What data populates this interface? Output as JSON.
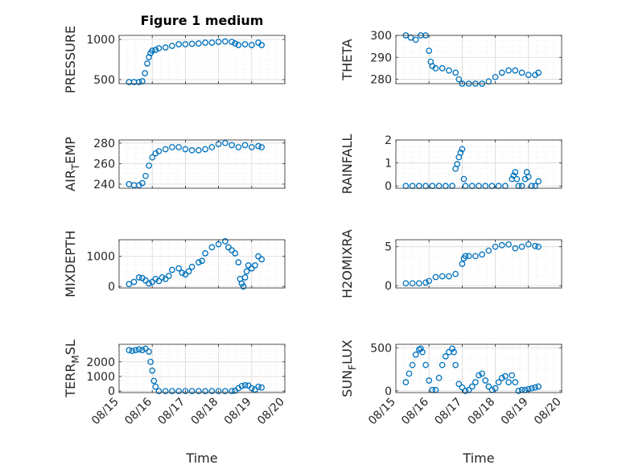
{
  "figure": {
    "title": "Figure 1 medium",
    "xlabel": "Time",
    "colors": {
      "marker": "#0072BD",
      "grid": "#d9d9d9",
      "axis": "#262626"
    },
    "x_tick_labels": [
      "08/15",
      "08/16",
      "08/17",
      "08/18",
      "08/19",
      "08/20"
    ]
  },
  "chart_data": [
    {
      "type": "scatter",
      "ylabel": "PRESSURE",
      "ylabel_base": "PRESSURE",
      "ylabel_sub": "",
      "ylabel_tail": "",
      "ylim": [
        450,
        1050
      ],
      "yticks": [
        500,
        1000
      ],
      "ytick_labels": [
        "500",
        "1000"
      ],
      "x": [
        15.3,
        15.45,
        15.6,
        15.7,
        15.78,
        15.85,
        15.9,
        15.95,
        16.0,
        16.1,
        16.2,
        16.4,
        16.6,
        16.8,
        17.0,
        17.2,
        17.4,
        17.6,
        17.8,
        18.0,
        18.2,
        18.4,
        18.5,
        18.6,
        18.8,
        19.0,
        19.2,
        19.3
      ],
      "y": [
        470,
        470,
        470,
        480,
        580,
        700,
        780,
        830,
        860,
        870,
        890,
        900,
        920,
        940,
        940,
        945,
        950,
        960,
        960,
        970,
        975,
        970,
        950,
        930,
        940,
        930,
        960,
        930
      ]
    },
    {
      "type": "scatter",
      "ylabel": "THETA",
      "ylabel_base": "THETA",
      "ylabel_sub": "",
      "ylabel_tail": "",
      "ylim": [
        278,
        300
      ],
      "yticks": [
        280,
        290,
        300
      ],
      "ytick_labels": [
        "280",
        "290",
        "300"
      ],
      "x": [
        15.3,
        15.45,
        15.6,
        15.75,
        15.9,
        16.0,
        16.05,
        16.1,
        16.2,
        16.4,
        16.6,
        16.8,
        16.9,
        17.0,
        17.2,
        17.4,
        17.6,
        17.8,
        18.0,
        18.2,
        18.4,
        18.6,
        18.8,
        19.0,
        19.2,
        19.3
      ],
      "y": [
        300,
        299,
        298,
        300,
        300,
        293,
        288,
        286,
        285,
        285,
        284,
        283,
        280,
        278,
        278,
        278,
        278,
        279,
        281,
        283,
        284,
        284,
        283,
        282,
        282,
        283
      ]
    },
    {
      "type": "scatter",
      "ylabel": "AIR_TEMP",
      "ylabel_base": "AIR",
      "ylabel_sub": "T",
      "ylabel_tail": "EMP",
      "ylim": [
        236,
        283
      ],
      "yticks": [
        240,
        260,
        280
      ],
      "ytick_labels": [
        "240",
        "260",
        "280"
      ],
      "x": [
        15.3,
        15.45,
        15.6,
        15.7,
        15.8,
        15.9,
        16.0,
        16.1,
        16.2,
        16.4,
        16.6,
        16.8,
        17.0,
        17.2,
        17.4,
        17.6,
        17.8,
        18.0,
        18.2,
        18.4,
        18.6,
        18.8,
        19.0,
        19.2,
        19.3
      ],
      "y": [
        240,
        239,
        239,
        241,
        248,
        258,
        266,
        270,
        272,
        274,
        276,
        276,
        274,
        273,
        273,
        274,
        276,
        279,
        280,
        278,
        276,
        278,
        276,
        277,
        276
      ]
    },
    {
      "type": "scatter",
      "ylabel": "RAINFALL",
      "ylabel_base": "RAINFALL",
      "ylabel_sub": "",
      "ylabel_tail": "",
      "ylim": [
        -0.1,
        2
      ],
      "yticks": [
        0,
        1,
        2
      ],
      "ytick_labels": [
        "0",
        "1",
        "2"
      ],
      "x": [
        15.3,
        15.5,
        15.7,
        15.9,
        16.1,
        16.3,
        16.5,
        16.7,
        16.8,
        16.85,
        16.9,
        16.95,
        17.0,
        17.05,
        17.1,
        17.3,
        17.5,
        17.7,
        17.9,
        18.1,
        18.3,
        18.5,
        18.55,
        18.6,
        18.65,
        18.7,
        18.8,
        18.9,
        18.95,
        19.0,
        19.1,
        19.2,
        19.3
      ],
      "y": [
        0,
        0,
        0,
        0,
        0,
        0,
        0,
        0,
        0.75,
        0.95,
        1.25,
        1.45,
        1.6,
        0.3,
        0,
        0,
        0,
        0,
        0,
        0,
        0,
        0.3,
        0.45,
        0.6,
        0.3,
        0,
        0,
        0.3,
        0.6,
        0.4,
        0,
        0,
        0.2
      ]
    },
    {
      "type": "scatter",
      "ylabel": "MIXDEPTH",
      "ylabel_base": "MIXDEPTH",
      "ylabel_sub": "",
      "ylabel_tail": "",
      "ylim": [
        -50,
        1550
      ],
      "yticks": [
        0,
        1000
      ],
      "ytick_labels": [
        "0",
        "1000"
      ],
      "x": [
        15.3,
        15.45,
        15.6,
        15.7,
        15.8,
        15.9,
        16.0,
        16.1,
        16.2,
        16.3,
        16.4,
        16.5,
        16.6,
        16.8,
        16.9,
        17.0,
        17.1,
        17.2,
        17.4,
        17.5,
        17.6,
        17.8,
        18.0,
        18.2,
        18.3,
        18.4,
        18.5,
        18.6,
        18.65,
        18.7,
        18.75,
        18.8,
        18.85,
        18.9,
        19.0,
        19.1,
        19.2,
        19.3
      ],
      "y": [
        80,
        150,
        300,
        280,
        200,
        100,
        150,
        250,
        180,
        300,
        250,
        350,
        550,
        600,
        450,
        400,
        500,
        650,
        800,
        850,
        1100,
        1300,
        1400,
        1500,
        1300,
        1200,
        1100,
        800,
        250,
        100,
        0,
        300,
        500,
        700,
        600,
        700,
        1000,
        900
      ]
    },
    {
      "type": "scatter",
      "ylabel": "H2OMIXRA",
      "ylabel_base": "H2OMIXRA",
      "ylabel_sub": "",
      "ylabel_tail": "",
      "ylim": [
        -0.3,
        5.9
      ],
      "yticks": [
        0,
        5
      ],
      "ytick_labels": [
        "0",
        "5"
      ],
      "x": [
        15.3,
        15.5,
        15.7,
        15.9,
        16.0,
        16.2,
        16.4,
        16.6,
        16.8,
        17.0,
        17.05,
        17.1,
        17.2,
        17.4,
        17.6,
        17.8,
        18.0,
        18.2,
        18.4,
        18.6,
        18.8,
        19.0,
        19.2,
        19.3
      ],
      "y": [
        0.3,
        0.3,
        0.3,
        0.4,
        0.6,
        1.1,
        1.2,
        1.2,
        1.5,
        2.8,
        3.5,
        3.8,
        3.8,
        3.8,
        4.0,
        4.5,
        5.0,
        5.2,
        5.3,
        4.8,
        5.0,
        5.3,
        5.1,
        5.0
      ]
    },
    {
      "type": "scatter",
      "ylabel": "TERR_MSL",
      "ylabel_base": "TERR",
      "ylabel_sub": "M",
      "ylabel_tail": "SL",
      "ylim": [
        -100,
        3200
      ],
      "yticks": [
        0,
        1000,
        2000
      ],
      "ytick_labels": [
        "0",
        "1000",
        "2000"
      ],
      "x": [
        15.3,
        15.4,
        15.5,
        15.6,
        15.7,
        15.8,
        15.9,
        15.95,
        16.0,
        16.05,
        16.1,
        16.2,
        16.4,
        16.6,
        16.8,
        17.0,
        17.2,
        17.4,
        17.6,
        17.8,
        18.0,
        18.2,
        18.4,
        18.5,
        18.6,
        18.7,
        18.8,
        18.9,
        19.0,
        19.1,
        19.2,
        19.3
      ],
      "y": [
        2800,
        2750,
        2800,
        2850,
        2800,
        2900,
        2700,
        2000,
        1400,
        700,
        300,
        0,
        0,
        0,
        0,
        0,
        0,
        0,
        0,
        0,
        0,
        0,
        0,
        30,
        200,
        350,
        400,
        380,
        200,
        100,
        300,
        250
      ]
    },
    {
      "type": "scatter",
      "ylabel": "SUN_FLUX",
      "ylabel_base": "SUN",
      "ylabel_sub": "F",
      "ylabel_tail": "LUX",
      "ylim": [
        -20,
        540
      ],
      "yticks": [
        0,
        500
      ],
      "ytick_labels": [
        "0",
        "500"
      ],
      "x": [
        15.3,
        15.4,
        15.5,
        15.6,
        15.7,
        15.75,
        15.8,
        15.9,
        16.0,
        16.1,
        16.2,
        16.3,
        16.4,
        16.5,
        16.6,
        16.7,
        16.75,
        16.8,
        16.9,
        17.0,
        17.1,
        17.2,
        17.3,
        17.4,
        17.5,
        17.6,
        17.7,
        17.8,
        17.9,
        18.0,
        18.1,
        18.2,
        18.3,
        18.4,
        18.5,
        18.6,
        18.7,
        18.8,
        18.9,
        19.0,
        19.1,
        19.2,
        19.3
      ],
      "y": [
        100,
        200,
        300,
        420,
        480,
        490,
        450,
        300,
        120,
        10,
        10,
        150,
        300,
        400,
        450,
        490,
        450,
        300,
        80,
        40,
        0,
        10,
        50,
        100,
        180,
        200,
        120,
        50,
        10,
        30,
        100,
        150,
        170,
        100,
        180,
        100,
        0,
        10,
        10,
        20,
        30,
        40,
        50
      ]
    }
  ]
}
